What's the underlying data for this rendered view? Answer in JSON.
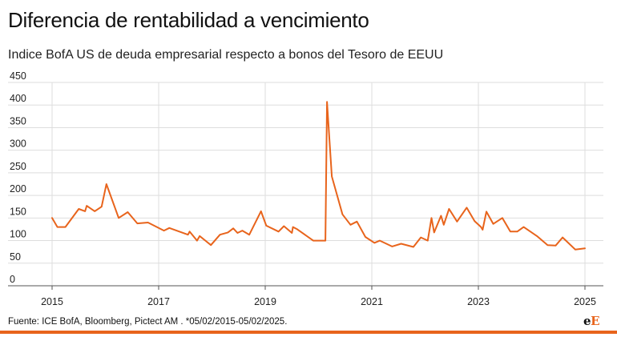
{
  "header": {
    "title": "Diferencia de rentabilidad a vencimiento",
    "subtitle": "Indice BofA US de deuda empresarial respecto a bonos del Tesoro de EEUU"
  },
  "footer": {
    "source": "Fuente: ICE BofA, Bloomberg, Pictect AM . *05/02/2015-05/02/2025.",
    "logo_part1": "e",
    "logo_part2": "E"
  },
  "colors": {
    "line": "#e8641c",
    "grid": "#dddddd",
    "accent": "#e8641c"
  },
  "chart_data": {
    "type": "line",
    "title": "Diferencia de rentabilidad a vencimiento",
    "subtitle": "Indice BofA US de deuda empresarial respecto a bonos del Tesoro de EEUU",
    "xlabel": "",
    "ylabel": "",
    "xlim": [
      2015,
      2025
    ],
    "ylim": [
      0,
      450
    ],
    "x_ticks": [
      2015,
      2017,
      2019,
      2021,
      2023,
      2025
    ],
    "y_ticks": [
      0,
      50,
      100,
      150,
      200,
      250,
      300,
      350,
      400,
      450
    ],
    "grid": "horizontal and vertical",
    "legend": "none",
    "series": [
      {
        "color": "#e8641c",
        "x": [
          2015.0,
          2015.1,
          2015.25,
          2015.5,
          2015.62,
          2015.65,
          2015.8,
          2015.93,
          2016.02,
          2016.25,
          2016.42,
          2016.6,
          2016.8,
          2017.1,
          2017.2,
          2017.55,
          2017.58,
          2017.72,
          2017.77,
          2017.98,
          2018.15,
          2018.3,
          2018.4,
          2018.48,
          2018.57,
          2018.7,
          2018.92,
          2019.02,
          2019.25,
          2019.35,
          2019.5,
          2019.52,
          2019.6,
          2019.9,
          2020.0,
          2020.13,
          2020.16,
          2020.25,
          2020.45,
          2020.6,
          2020.72,
          2020.88,
          2021.05,
          2021.15,
          2021.38,
          2021.55,
          2021.78,
          2021.92,
          2022.05,
          2022.12,
          2022.17,
          2022.3,
          2022.35,
          2022.45,
          2022.6,
          2022.78,
          2022.93,
          2023.05,
          2023.08,
          2023.15,
          2023.28,
          2023.45,
          2023.6,
          2023.73,
          2023.85,
          2024.1,
          2024.3,
          2024.45,
          2024.58,
          2024.82,
          2025.0
        ],
        "y": [
          150,
          130,
          130,
          170,
          165,
          177,
          165,
          175,
          225,
          150,
          163,
          138,
          140,
          122,
          128,
          113,
          120,
          100,
          110,
          90,
          113,
          118,
          127,
          117,
          122,
          113,
          165,
          133,
          120,
          132,
          117,
          130,
          125,
          100,
          100,
          100,
          407,
          242,
          158,
          135,
          142,
          108,
          95,
          100,
          87,
          93,
          86,
          107,
          100,
          150,
          118,
          155,
          135,
          170,
          142,
          173,
          143,
          130,
          124,
          164,
          137,
          150,
          120,
          120,
          130,
          110,
          90,
          89,
          107,
          80,
          83
        ]
      }
    ]
  }
}
